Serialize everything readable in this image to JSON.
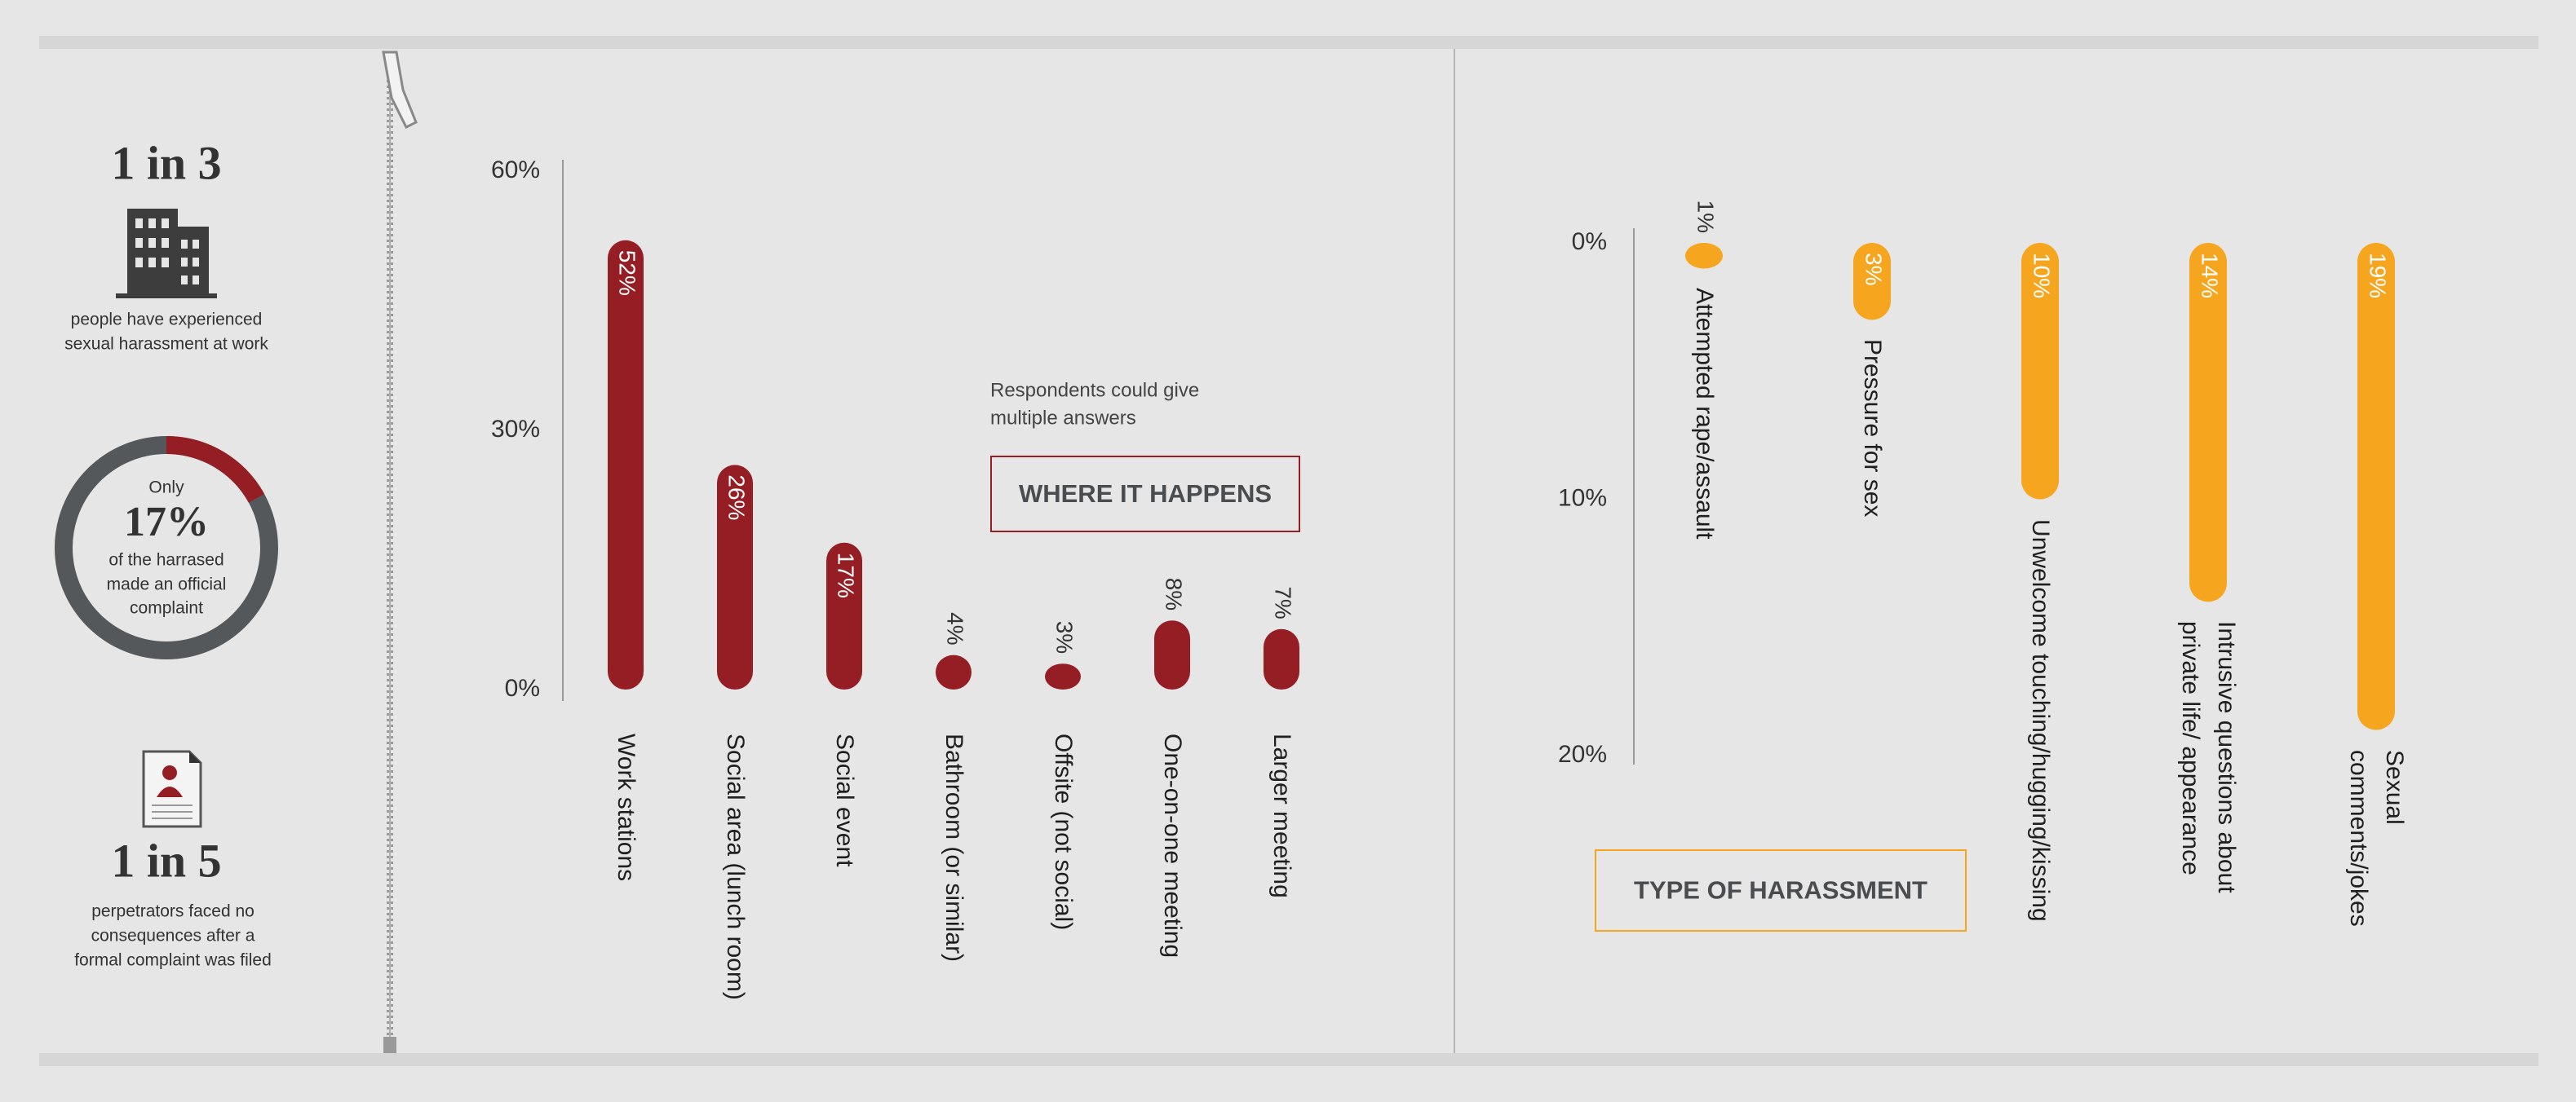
{
  "sidebar": {
    "stat1": {
      "headline": "1 in 3",
      "lines": [
        "people have experienced",
        "sexual harassment at work"
      ]
    },
    "donut": {
      "prefix": "Only",
      "value": 17,
      "label": "17%",
      "lines": [
        "of the harrased",
        "made an official",
        "complaint"
      ],
      "color": "#951e25",
      "track_color": "#55585b"
    },
    "stat2": {
      "headline": "1 in 5",
      "lines": [
        "perpetrators faced no",
        "consequences after a",
        "formal complaint was filed"
      ]
    }
  },
  "chart_data": [
    {
      "type": "bar",
      "title": "WHERE IT HAPPENS",
      "note": [
        "Respondents could give",
        "multiple answers"
      ],
      "categories": [
        "Work stations",
        "Social area (lunch room)",
        "Social event",
        "Bathroom (or similar)",
        "Offsite (not social)",
        "One-on-one meeting",
        "Larger meeting"
      ],
      "values": [
        52,
        26,
        17,
        4,
        3,
        8,
        7
      ],
      "value_labels": [
        "52%",
        "26%",
        "17%",
        "4%",
        "3%",
        "8%",
        "7%"
      ],
      "color": "#951e25",
      "ylim": [
        0,
        60
      ],
      "yticks": [
        {
          "value": 0,
          "label": "0%"
        },
        {
          "value": 30,
          "label": "30%"
        },
        {
          "value": 60,
          "label": "60%"
        }
      ]
    },
    {
      "type": "bar",
      "title": "TYPE OF HARASSMENT",
      "inverted_y": true,
      "categories": [
        "Attempted rape/assault",
        "Pressure for sex",
        "Unwelcome touching/hugging/kissing",
        "Intrusive questions about private life/ appearance",
        "Sexual comments/jokes"
      ],
      "values": [
        1,
        3,
        10,
        14,
        19
      ],
      "value_labels": [
        "1%",
        "3%",
        "10%",
        "14%",
        "19%"
      ],
      "color": "#f6a51f",
      "ylim": [
        0,
        20
      ],
      "yticks": [
        {
          "value": 0,
          "label": "0%"
        },
        {
          "value": 10,
          "label": "10%"
        },
        {
          "value": 20,
          "label": "20%"
        }
      ]
    }
  ]
}
